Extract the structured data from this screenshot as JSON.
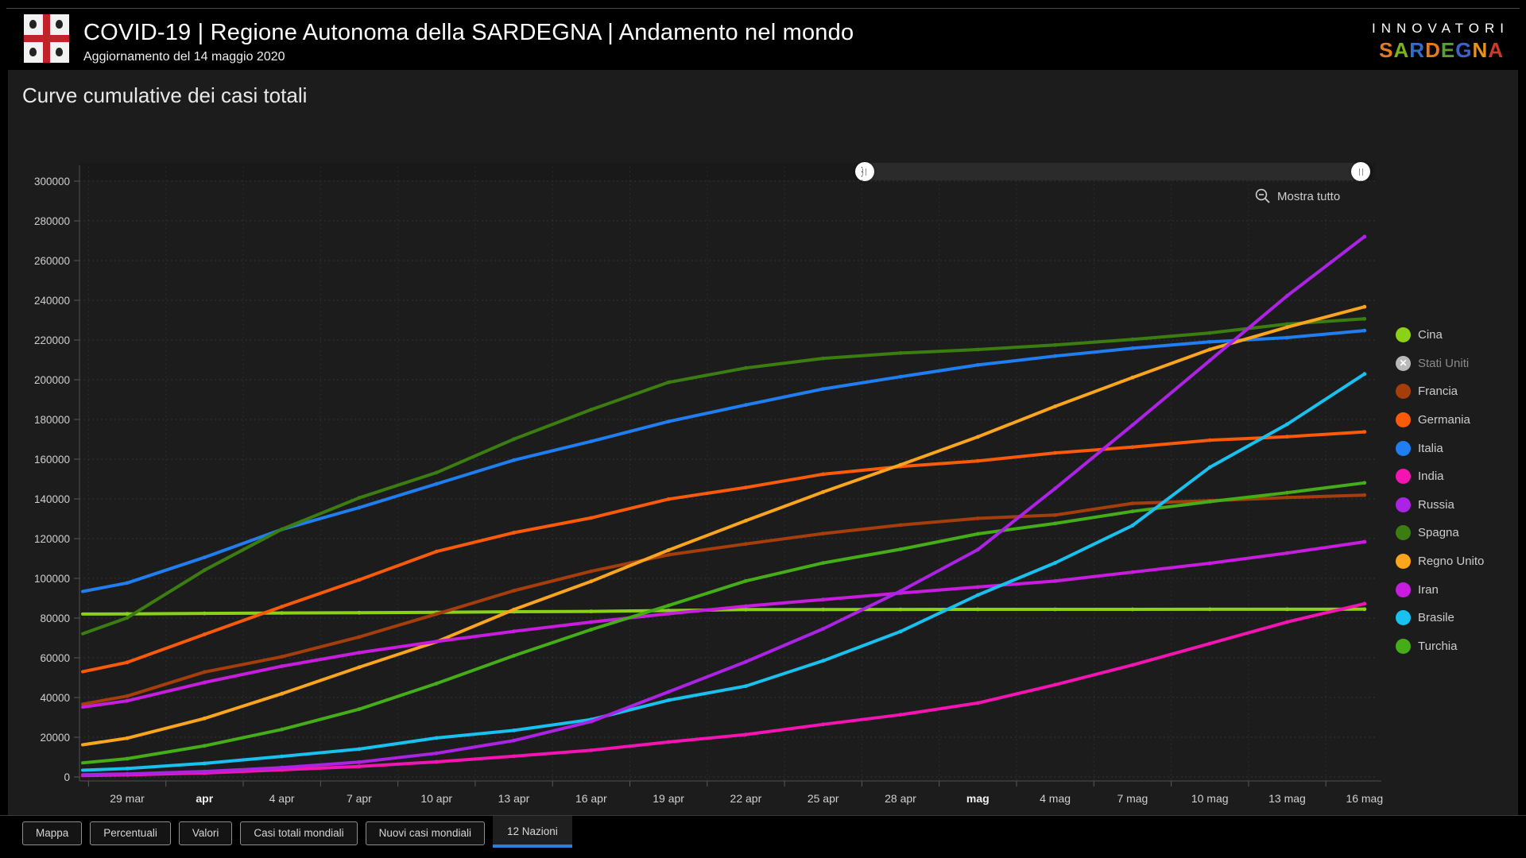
{
  "header": {
    "title": "COVID-19 | Regione Autonoma della SARDEGNA | Andamento nel mondo",
    "subtitle": "Aggiornamento del 14 maggio 2020",
    "logo": "sardegna-coat-of-arms",
    "brand": {
      "line1": "INNOVATORI",
      "line2_letters": [
        {
          "ch": "S",
          "color": "#e87a1e"
        },
        {
          "ch": "A",
          "color": "#79b41e"
        },
        {
          "ch": "R",
          "color": "#2e6ec8"
        },
        {
          "ch": "D",
          "color": "#e87a1e"
        },
        {
          "ch": "E",
          "color": "#58a032"
        },
        {
          "ch": "G",
          "color": "#3c64c8"
        },
        {
          "ch": "N",
          "color": "#e8921e"
        },
        {
          "ch": "A",
          "color": "#c83c28"
        }
      ]
    }
  },
  "page": {
    "title": "Curve cumulative dei casi totali"
  },
  "toolbar": {
    "show_all_label": "Mostra tutto",
    "zoom_out_icon": "magnifier-minus-icon"
  },
  "slider": {
    "start_pct": 60.6,
    "end_pct": 98.9
  },
  "colors": {
    "accent_blue": "#2e7ed8",
    "disabled_gray": "#b9b9b9"
  },
  "chart_data": {
    "type": "line",
    "title": "Curve cumulative dei casi totali",
    "grid": true,
    "legend_position": "right",
    "ylim": [
      0,
      300000
    ],
    "y_ticks": [
      0,
      20000,
      40000,
      60000,
      80000,
      100000,
      120000,
      140000,
      160000,
      180000,
      200000,
      220000,
      240000,
      260000,
      280000,
      300000
    ],
    "categories": [
      "29 mar",
      "apr",
      "4 apr",
      "7 apr",
      "10 apr",
      "13 apr",
      "16 apr",
      "19 apr",
      "22 apr",
      "25 apr",
      "28 apr",
      "mag",
      "4 mag",
      "7 mag",
      "10 mag",
      "13 mag",
      "16 mag"
    ],
    "bold_labels": [
      "apr",
      "mag"
    ],
    "series": [
      {
        "name": "Cina",
        "color": "#8ad117",
        "hidden": false,
        "values": [
          82122,
          82361,
          82543,
          82665,
          82883,
          83213,
          83356,
          83817,
          84287,
          84338,
          84369,
          84385,
          84400,
          84416,
          84426,
          84451,
          84471
        ]
      },
      {
        "name": "Stati Uniti",
        "color": "#b9b9b9",
        "hidden": true,
        "values": []
      },
      {
        "name": "Francia",
        "color": "#a63e0c",
        "hidden": false,
        "values": [
          40708,
          52836,
          60504,
          70478,
          82048,
          93790,
          103573,
          111821,
          117324,
          122577,
          126835,
          130185,
          131863,
          137779,
          139063,
          140734,
          141919
        ]
      },
      {
        "name": "Germania",
        "color": "#fb5a09",
        "hidden": false,
        "values": [
          57695,
          71808,
          85778,
          99225,
          113525,
          123016,
          130450,
          139897,
          145743,
          152438,
          156337,
          159119,
          163175,
          166091,
          169575,
          171306,
          173772
        ]
      },
      {
        "name": "Italia",
        "color": "#1f7ef2",
        "hidden": false,
        "values": [
          97689,
          110574,
          124632,
          135586,
          147577,
          159516,
          168941,
          178972,
          187327,
          195351,
          201505,
          207428,
          211938,
          215858,
          219070,
          221216,
          224760
        ]
      },
      {
        "name": "India",
        "color": "#f414b1",
        "hidden": false,
        "values": [
          1024,
          1998,
          3588,
          5311,
          7598,
          10453,
          13430,
          17615,
          21370,
          26496,
          31324,
          37257,
          46437,
          56351,
          67161,
          78055,
          87250
        ]
      },
      {
        "name": "Russia",
        "color": "#ac23e6",
        "hidden": false,
        "values": [
          1534,
          2777,
          4731,
          7497,
          11917,
          18328,
          27938,
          42853,
          57999,
          74588,
          93558,
          114431,
          145268,
          177160,
          209688,
          242271,
          272043
        ]
      },
      {
        "name": "Spagna",
        "color": "#3c7d11",
        "hidden": false,
        "values": [
          80110,
          104118,
          124736,
          140510,
          153222,
          170099,
          184948,
          198674,
          205905,
          210773,
          213435,
          215216,
          217466,
          220325,
          223578,
          228030,
          230698
        ]
      },
      {
        "name": "Regno Unito",
        "color": "#fca51d",
        "hidden": false,
        "values": [
          19522,
          29474,
          41903,
          55242,
          68077,
          84279,
          98476,
          114217,
          129044,
          143464,
          157149,
          171253,
          186599,
          201101,
          215260,
          226463,
          236711
        ]
      },
      {
        "name": "Iran",
        "color": "#c81ddf",
        "hidden": false,
        "values": [
          38309,
          47593,
          55743,
          62589,
          68192,
          73303,
          77995,
          82211,
          85996,
          89328,
          92584,
          95646,
          98647,
          103135,
          107603,
          112725,
          118392
        ]
      },
      {
        "name": "Brasile",
        "color": "#18c1ef",
        "hidden": false,
        "values": [
          4256,
          6836,
          10360,
          14034,
          19638,
          23430,
          28912,
          38654,
          45757,
          58509,
          73235,
          91589,
          107780,
          126611,
          155939,
          177589,
          202918
        ]
      },
      {
        "name": "Turchia",
        "color": "#45ad17",
        "hidden": false,
        "values": [
          9217,
          15679,
          23934,
          34109,
          47029,
          61049,
          74193,
          86306,
          98674,
          107773,
          114653,
          122392,
          127659,
          133721,
          138657,
          143114,
          148067
        ]
      }
    ]
  },
  "tabs": [
    {
      "label": "Mappa",
      "active": false
    },
    {
      "label": "Percentuali",
      "active": false
    },
    {
      "label": "Valori",
      "active": false
    },
    {
      "label": "Casi totali mondiali",
      "active": false
    },
    {
      "label": "Nuovi casi mondiali",
      "active": false
    },
    {
      "label": "12 Nazioni",
      "active": true
    }
  ]
}
